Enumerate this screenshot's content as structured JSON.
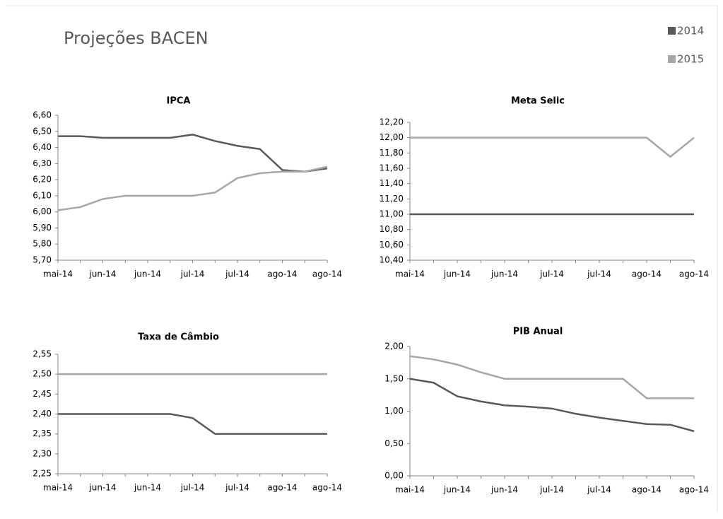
{
  "header": {
    "title": "Projeções BACEN"
  },
  "chart_data": [
    {
      "type": "line",
      "title": "IPCA",
      "categories": [
        "mai-14",
        null,
        "jun-14",
        null,
        "jun-14",
        null,
        "jul-14",
        null,
        "jul-14",
        null,
        "ago-14",
        null,
        "ago-14"
      ],
      "series": [
        {
          "name": "2014",
          "color": "#595959",
          "values": [
            6.47,
            6.47,
            6.46,
            6.46,
            6.46,
            6.46,
            6.48,
            6.44,
            6.41,
            6.39,
            6.26,
            6.25,
            6.27
          ]
        },
        {
          "name": "2015",
          "color": "#a6a6a6",
          "values": [
            6.01,
            6.03,
            6.08,
            6.1,
            6.1,
            6.1,
            6.1,
            6.12,
            6.21,
            6.24,
            6.25,
            6.25,
            6.28
          ]
        }
      ],
      "ylim": [
        5.7,
        6.6
      ],
      "yticks": [
        {
          "value": 5.7,
          "label": "5,70"
        },
        {
          "value": 5.8,
          "label": "5,80"
        },
        {
          "value": 5.9,
          "label": "5,90"
        },
        {
          "value": 6.0,
          "label": "6,00"
        },
        {
          "value": 6.1,
          "label": "6,10"
        },
        {
          "value": 6.2,
          "label": "6,20"
        },
        {
          "value": 6.3,
          "label": "6,30"
        },
        {
          "value": 6.4,
          "label": "6,40"
        },
        {
          "value": 6.5,
          "label": "6,50"
        },
        {
          "value": 6.6,
          "label": "6,60"
        }
      ]
    },
    {
      "type": "line",
      "title": "Meta Selic",
      "categories": [
        "mai-14",
        null,
        "jun-14",
        null,
        "jun-14",
        null,
        "jul-14",
        null,
        "jul-14",
        null,
        "ago-14",
        null,
        "ago-14"
      ],
      "series": [
        {
          "color": "#595959",
          "values": [
            11,
            11,
            11,
            11,
            11,
            11,
            11,
            11,
            11,
            11,
            11,
            11,
            11
          ]
        },
        {
          "color": "#a6a6a6",
          "values": [
            12,
            12,
            12,
            12,
            12,
            12,
            12,
            12,
            12,
            12,
            12,
            11.75,
            12
          ]
        }
      ],
      "ylim": [
        10.4,
        12.2
      ],
      "yticks": [
        {
          "value": 10.4,
          "label": "10,40"
        },
        {
          "value": 10.6,
          "label": "10,60"
        },
        {
          "value": 10.8,
          "label": "10,80"
        },
        {
          "value": 11.0,
          "label": "11,00"
        },
        {
          "value": 11.2,
          "label": "11,20"
        },
        {
          "value": 11.4,
          "label": "11,40"
        },
        {
          "value": 11.6,
          "label": "11,60"
        },
        {
          "value": 11.8,
          "label": "11,80"
        },
        {
          "value": 12.0,
          "label": "12,00"
        },
        {
          "value": 12.2,
          "label": "12,20"
        }
      ]
    },
    {
      "type": "line",
      "title": "Taxa de Câmbio",
      "categories": [
        "mai-14",
        null,
        "jun-14",
        null,
        "jun-14",
        null,
        "jul-14",
        null,
        "jul-14",
        null,
        "ago-14",
        null,
        "ago-14"
      ],
      "series": [
        {
          "color": "#595959",
          "values": [
            2.4,
            2.4,
            2.4,
            2.4,
            2.4,
            2.4,
            2.39,
            2.35,
            2.35,
            2.35,
            2.35,
            2.35,
            2.35
          ]
        },
        {
          "color": "#a6a6a6",
          "values": [
            2.5,
            2.5,
            2.5,
            2.5,
            2.5,
            2.5,
            2.5,
            2.5,
            2.5,
            2.5,
            2.5,
            2.5,
            2.5
          ]
        }
      ],
      "ylim": [
        2.25,
        2.55
      ],
      "yticks": [
        {
          "value": 2.25,
          "label": "2,25"
        },
        {
          "value": 2.3,
          "label": "2,30"
        },
        {
          "value": 2.35,
          "label": "2,35"
        },
        {
          "value": 2.4,
          "label": "2,40"
        },
        {
          "value": 2.45,
          "label": "2,45"
        },
        {
          "value": 2.5,
          "label": "2,50"
        },
        {
          "value": 2.55,
          "label": "2,55"
        }
      ]
    },
    {
      "type": "line",
      "title": "PIB Anual",
      "categories": [
        "mai-14",
        null,
        "jun-14",
        null,
        "jun-14",
        null,
        "jul-14",
        null,
        "jul-14",
        null,
        "ago-14",
        null,
        "ago-14"
      ],
      "series": [
        {
          "color": "#595959",
          "values": [
            1.5,
            1.44,
            1.23,
            1.15,
            1.09,
            1.07,
            1.04,
            0.96,
            0.9,
            0.85,
            0.8,
            0.79,
            0.69
          ]
        },
        {
          "color": "#a6a6a6",
          "values": [
            1.85,
            1.8,
            1.72,
            1.6,
            1.5,
            1.5,
            1.5,
            1.5,
            1.5,
            1.5,
            1.2,
            1.2,
            1.2
          ]
        }
      ],
      "ylim": [
        0,
        2
      ],
      "yticks": [
        {
          "value": 0,
          "label": "0,00"
        },
        {
          "value": 0.5,
          "label": "0,50"
        },
        {
          "value": 1.0,
          "label": "1,00"
        },
        {
          "value": 1.5,
          "label": "1,50"
        },
        {
          "value": 2.0,
          "label": "2,00"
        }
      ]
    }
  ]
}
